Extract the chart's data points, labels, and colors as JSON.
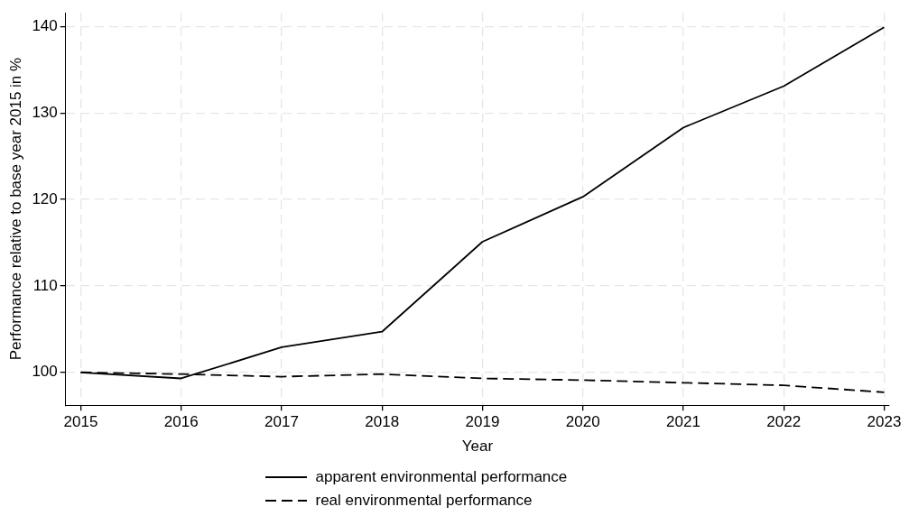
{
  "chart_data": {
    "type": "line",
    "xlabel": "Year",
    "ylabel": "Performance relative to base year 2015 in %",
    "x": [
      2015,
      2016,
      2017,
      2018,
      2019,
      2020,
      2021,
      2022,
      2023
    ],
    "series": [
      {
        "name": "apparent environmental performance",
        "color": "#000000",
        "line_style": "solid",
        "values": [
          100,
          99.3,
          102.9,
          104.7,
          115.1,
          120.3,
          128.3,
          133.1,
          139.9
        ]
      },
      {
        "name": "real environmental performance",
        "color": "#000000",
        "line_style": "dashed",
        "values": [
          100,
          99.8,
          99.5,
          99.8,
          99.3,
          99.1,
          98.8,
          98.5,
          97.7
        ]
      }
    ],
    "xlim": [
      2014.85,
      2023.05
    ],
    "xticks": [
      2015,
      2016,
      2017,
      2018,
      2019,
      2020,
      2021,
      2022,
      2023
    ],
    "ylim": [
      96.2,
      141.6
    ],
    "yticks": [
      100,
      110,
      120,
      130,
      140
    ],
    "grid": true,
    "legend": "bottom",
    "marker": "none"
  }
}
